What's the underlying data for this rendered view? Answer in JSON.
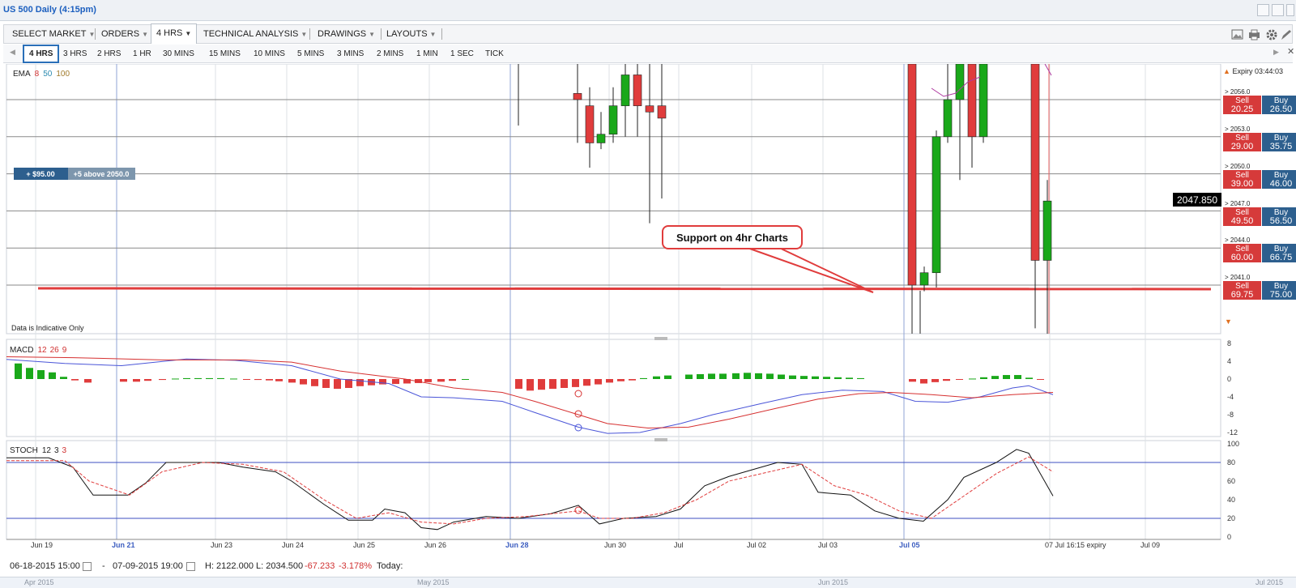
{
  "window": {
    "title": "US 500 Daily (4:15pm)"
  },
  "toolbar": {
    "items": [
      {
        "label": "SELECT MARKET"
      },
      {
        "label": "ORDERS"
      },
      {
        "label": "4 HRS"
      },
      {
        "label": "TECHNICAL ANALYSIS"
      },
      {
        "label": "DRAWINGS"
      },
      {
        "label": "LAYOUTS"
      }
    ]
  },
  "timeframes": [
    "4 HRS",
    "3 HRS",
    "2 HRS",
    "1 HR",
    "30 MINS",
    "15 MINS",
    "10 MINS",
    "5 MINS",
    "3 MINS",
    "2 MINS",
    "1 MIN",
    "1 SEC",
    "TICK"
  ],
  "indicators": {
    "ema": {
      "name": "EMA",
      "p1": "8",
      "p2": "50",
      "p3": "100"
    },
    "macd": {
      "name": "MACD",
      "p1": "12",
      "p2": "26",
      "p3": "9"
    },
    "stoch": {
      "name": "STOCH",
      "p1": "12",
      "p2": "3",
      "p3": "3"
    }
  },
  "chart_data": {
    "type": "candlestick",
    "price_levels": [
      "2056.0",
      "2053.0",
      "2050.0",
      "2047.0",
      "2044.0",
      "2041.0"
    ],
    "current_price": "2047.850",
    "x_labels": [
      "Jun 19",
      "Jun 21",
      "Jun 23",
      "Jun 24",
      "Jun 25",
      "Jun 26",
      "Jun 28",
      "Jun 30",
      "Jul",
      "Jul 02",
      "Jul 03",
      "Jul 05",
      "07 Jul 16:15 expiry",
      "Jul 09"
    ],
    "macd_axis": [
      "8",
      "4",
      "0",
      "-4",
      "-8",
      "-12"
    ],
    "stoch_axis": [
      "100",
      "80",
      "60",
      "40",
      "20",
      "0"
    ],
    "annotation": "Support on 4hr Charts",
    "indicative_note": "Data is Indicative Only",
    "position_badge": {
      "value": "+ $95.00",
      "label": "+5 above 2050.0"
    },
    "candles": [
      {
        "o": 2056.5,
        "h": 2059,
        "l": 2052.5,
        "c": 2056
      },
      {
        "o": 2055.5,
        "h": 2057,
        "l": 2050.5,
        "c": 2052.5
      },
      {
        "o": 2052.5,
        "h": 2055,
        "l": 2052,
        "c": 2053.2
      },
      {
        "o": 2053.2,
        "h": 2057,
        "l": 2052.5,
        "c": 2055.5
      },
      {
        "o": 2055.5,
        "h": 2059,
        "l": 2053,
        "c": 2058
      },
      {
        "o": 2058,
        "h": 2059,
        "l": 2053,
        "c": 2055.5
      },
      {
        "o": 2055.5,
        "h": 2059,
        "l": 2046,
        "c": 2055
      },
      {
        "o": 2055.5,
        "h": 2059,
        "l": 2048,
        "c": 2054.5
      },
      {
        "o": 2059,
        "h": 2059,
        "l": 2037,
        "c": 2041
      },
      {
        "o": 2041,
        "h": 2042.5,
        "l": 2040.5,
        "c": 2042
      },
      {
        "o": 2042,
        "h": 2053.5,
        "l": 2040.8,
        "c": 2053
      },
      {
        "o": 2053,
        "h": 2059,
        "l": 2052.5,
        "c": 2056
      },
      {
        "o": 2056,
        "h": 2059,
        "l": 2049.5,
        "c": 2059
      },
      {
        "o": 2059,
        "h": 2059,
        "l": 2050.5,
        "c": 2053
      },
      {
        "o": 2053,
        "h": 2059,
        "l": 2052.5,
        "c": 2059
      },
      {
        "o": 2059,
        "h": 2059,
        "l": 2037.5,
        "c": 2043
      },
      {
        "o": 2043,
        "h": 2049.5,
        "l": 2037,
        "c": 2047.8
      }
    ]
  },
  "side_panel": {
    "expiry": "Expiry 03:44:03",
    "rows": [
      {
        "level": "> 2056.0",
        "sell_label": "Sell",
        "sell": "20.25",
        "buy_label": "Buy",
        "buy": "26.50"
      },
      {
        "level": "> 2053.0",
        "sell_label": "Sell",
        "sell": "29.00",
        "buy_label": "Buy",
        "buy": "35.75"
      },
      {
        "level": "> 2050.0",
        "sell_label": "Sell",
        "sell": "39.00",
        "buy_label": "Buy",
        "buy": "46.00"
      },
      {
        "level": "> 2047.0",
        "sell_label": "Sell",
        "sell": "49.50",
        "buy_label": "Buy",
        "buy": "56.50"
      },
      {
        "level": "> 2044.0",
        "sell_label": "Sell",
        "sell": "60.00",
        "buy_label": "Buy",
        "buy": "66.75"
      },
      {
        "level": "> 2041.0",
        "sell_label": "Sell",
        "sell": "69.75",
        "buy_label": "Buy",
        "buy": "75.00"
      }
    ]
  },
  "bottom": {
    "start": "06-18-2015 15:00",
    "end": "07-09-2015 19:00",
    "high": "H: 2122.000",
    "low": "L: 2034.500",
    "change": "-67.233",
    "change_pct": "-3.178%",
    "today": "Today:"
  },
  "navigator": [
    "Apr 2015",
    "May 2015",
    "Jun 2015",
    "Jul 2015"
  ],
  "colors": {
    "up": "#1aa81a",
    "down": "#e03c3c",
    "support": "#e03c3c",
    "macd_line": "#4a55d8",
    "signal_line": "#d63030",
    "stoch_k": "#111111",
    "stoch_d": "#e03c3c",
    "accent": "#1c5fbf"
  }
}
